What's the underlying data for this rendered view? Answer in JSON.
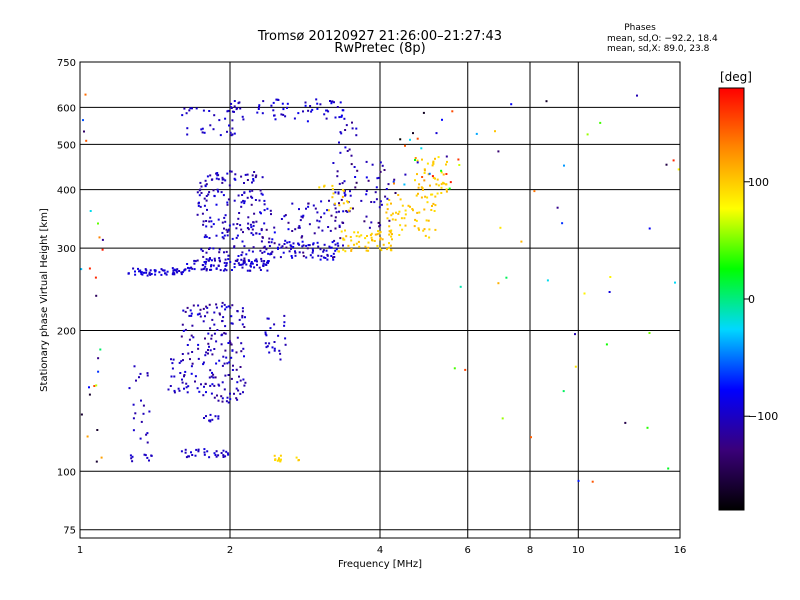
{
  "chart_data": {
    "type": "scatter",
    "title": "Tromsø 20120927 21:26:00–21:27:43",
    "subtitle": "RwPretec (8p)",
    "xlabel": "Frequency [MHz]",
    "ylabel": "Stationary phase Virtual Height [km]",
    "x_scale": "log",
    "y_scale": "log",
    "xlim": [
      1,
      16
    ],
    "ylim": [
      72,
      750
    ],
    "x_ticks": [
      1,
      2,
      4,
      6,
      8,
      10,
      16
    ],
    "x_tick_labels": [
      "1",
      "2",
      "4",
      "6",
      "8",
      "10",
      "16"
    ],
    "y_ticks": [
      75,
      100,
      200,
      300,
      400,
      500,
      600,
      750
    ],
    "y_tick_labels": [
      "75",
      "100",
      "200",
      "300",
      "400",
      "500",
      "600",
      "750"
    ],
    "grid": true,
    "phase_stats": {
      "heading": "Phases",
      "line1": "mean, sd,O: −92.2, 18.4",
      "line2": "mean, sd,X:  89.0, 23.8"
    },
    "colorbar": {
      "label": "[deg]",
      "tick_values": [
        100,
        0,
        -100
      ],
      "tick_labels": [
        "100",
        "0",
        "−100"
      ],
      "range": [
        -180,
        180
      ],
      "colors": [
        "#000000",
        "#3a007a",
        "#0000ff",
        "#00d8ff",
        "#00ff00",
        "#ffff00",
        "#ff8800",
        "#ff0000"
      ]
    },
    "series": [
      {
        "clusters": [
          {
            "x": [
              1.25,
              1.62
            ],
            "y": [
              262,
              272
            ],
            "phase": [
              -105,
              -85
            ],
            "n": 55
          },
          {
            "x": [
              1.62,
              2.4
            ],
            "y": [
              268,
              285
            ],
            "phase": [
              -110,
              -85
            ],
            "n": 90
          },
          {
            "x": [
              2.4,
              3.3
            ],
            "y": [
              283,
              310
            ],
            "phase": [
              -110,
              -80
            ],
            "n": 60
          },
          {
            "x": [
              3.3,
              4.3
            ],
            "y": [
              295,
              330
            ],
            "phase": [
              90,
              110
            ],
            "n": 60
          },
          {
            "x": [
              4.1,
              5.2
            ],
            "y": [
              315,
              390
            ],
            "phase": [
              90,
              110
            ],
            "n": 55
          },
          {
            "x": [
              4.7,
              5.5
            ],
            "y": [
              370,
              470
            ],
            "phase": [
              88,
              112
            ],
            "n": 45
          },
          {
            "x": [
              1.72,
              2.35
            ],
            "y": [
              280,
              440
            ],
            "phase": [
              -120,
              -85
            ],
            "n": 200
          },
          {
            "x": [
              2.3,
              3.4
            ],
            "y": [
              285,
              380
            ],
            "phase": [
              -130,
              -80
            ],
            "n": 90
          },
          {
            "x": [
              3.2,
              4.3
            ],
            "y": [
              330,
              460
            ],
            "phase": [
              -140,
              -85
            ],
            "n": 55
          },
          {
            "x": [
              3.3,
              3.6
            ],
            "y": [
              380,
              560
            ],
            "phase": [
              -125,
              -90
            ],
            "n": 25
          },
          {
            "x": [
              3.0,
              3.5
            ],
            "y": [
              360,
              410
            ],
            "phase": [
              90,
              110
            ],
            "n": 18
          },
          {
            "x": [
              1.6,
              2.15
            ],
            "y": [
              520,
              600
            ],
            "phase": [
              -110,
              -90
            ],
            "n": 35
          },
          {
            "x": [
              2.2,
              3.4
            ],
            "y": [
              560,
              625
            ],
            "phase": [
              -110,
              -80
            ],
            "n": 55
          },
          {
            "x": [
              2.0,
              2.1
            ],
            "y": [
              570,
              620
            ],
            "phase": [
              -110,
              -90
            ],
            "n": 10
          },
          {
            "x": [
              1.6,
              2.15
            ],
            "y": [
              140,
              230
            ],
            "phase": [
              -125,
              -85
            ],
            "n": 180
          },
          {
            "x": [
              1.5,
              1.65
            ],
            "y": [
              145,
              175
            ],
            "phase": [
              -110,
              -95
            ],
            "n": 20
          },
          {
            "x": [
              1.25,
              1.45
            ],
            "y": [
              115,
              170
            ],
            "phase": [
              -115,
              -95
            ],
            "n": 20
          },
          {
            "x": [
              2.35,
              2.6
            ],
            "y": [
              170,
              215
            ],
            "phase": [
              -110,
              -90
            ],
            "n": 25
          },
          {
            "x": [
              1.6,
              2.0
            ],
            "y": [
              107,
              112
            ],
            "phase": [
              -110,
              -90
            ],
            "n": 30
          },
          {
            "x": [
              1.25,
              1.4
            ],
            "y": [
              104,
              110
            ],
            "phase": [
              -110,
              -95
            ],
            "n": 10
          },
          {
            "x": [
              2.45,
              2.55
            ],
            "y": [
              105,
              108
            ],
            "phase": [
              90,
              105
            ],
            "n": 10
          },
          {
            "x": [
              2.7,
              2.75
            ],
            "y": [
              104,
              107
            ],
            "phase": [
              90,
              105
            ],
            "n": 3
          },
          {
            "x": [
              1.75,
              1.9
            ],
            "y": [
              127,
              132
            ],
            "phase": [
              -105,
              -95
            ],
            "n": 10
          },
          {
            "x": [
              1.0,
              1.12
            ],
            "y": [
              95,
              650
            ],
            "phase": [
              -180,
              180
            ],
            "n": 25
          },
          {
            "x": [
              5.5,
              16
            ],
            "y": [
              90,
              640
            ],
            "phase": [
              -180,
              180
            ],
            "n": 40
          },
          {
            "x": [
              4.2,
              5.9
            ],
            "y": [
              400,
              600
            ],
            "phase": [
              -180,
              180
            ],
            "n": 30
          }
        ]
      }
    ]
  }
}
